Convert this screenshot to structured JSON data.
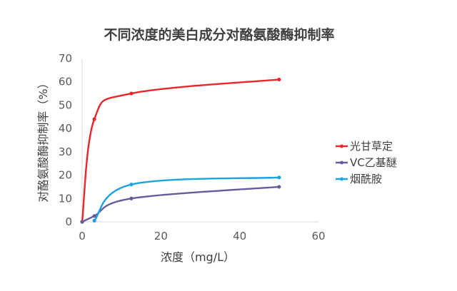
{
  "chart_data": {
    "type": "line",
    "title": "不同浓度的美白成分对酪氨酸酶抑制率",
    "xlabel": "浓度（mg/L）",
    "ylabel": "对酪氨酸酶抑制率（%）",
    "xlim": [
      0,
      60
    ],
    "ylim": [
      0,
      70
    ],
    "x_ticks": [
      "0",
      "20",
      "40",
      "60"
    ],
    "y_ticks": [
      "0",
      "10",
      "20",
      "30",
      "40",
      "50",
      "60",
      "70"
    ],
    "grid": false,
    "smooth": true,
    "legend_position": "right",
    "series": [
      {
        "name": "光甘草定",
        "color": "#e8262b",
        "points": [
          [
            0,
            0
          ],
          [
            3.1,
            44
          ],
          [
            12.5,
            55
          ],
          [
            50,
            61
          ]
        ]
      },
      {
        "name": "VC乙基醚",
        "color": "#6a5a9c",
        "points": [
          [
            0,
            0
          ],
          [
            3.1,
            2.5
          ],
          [
            12.5,
            10
          ],
          [
            50,
            15
          ]
        ]
      },
      {
        "name": "烟酰胺",
        "color": "#1ba3dd",
        "points": [
          [
            3.1,
            0.5
          ],
          [
            12.5,
            16
          ],
          [
            50,
            19
          ]
        ]
      }
    ]
  }
}
